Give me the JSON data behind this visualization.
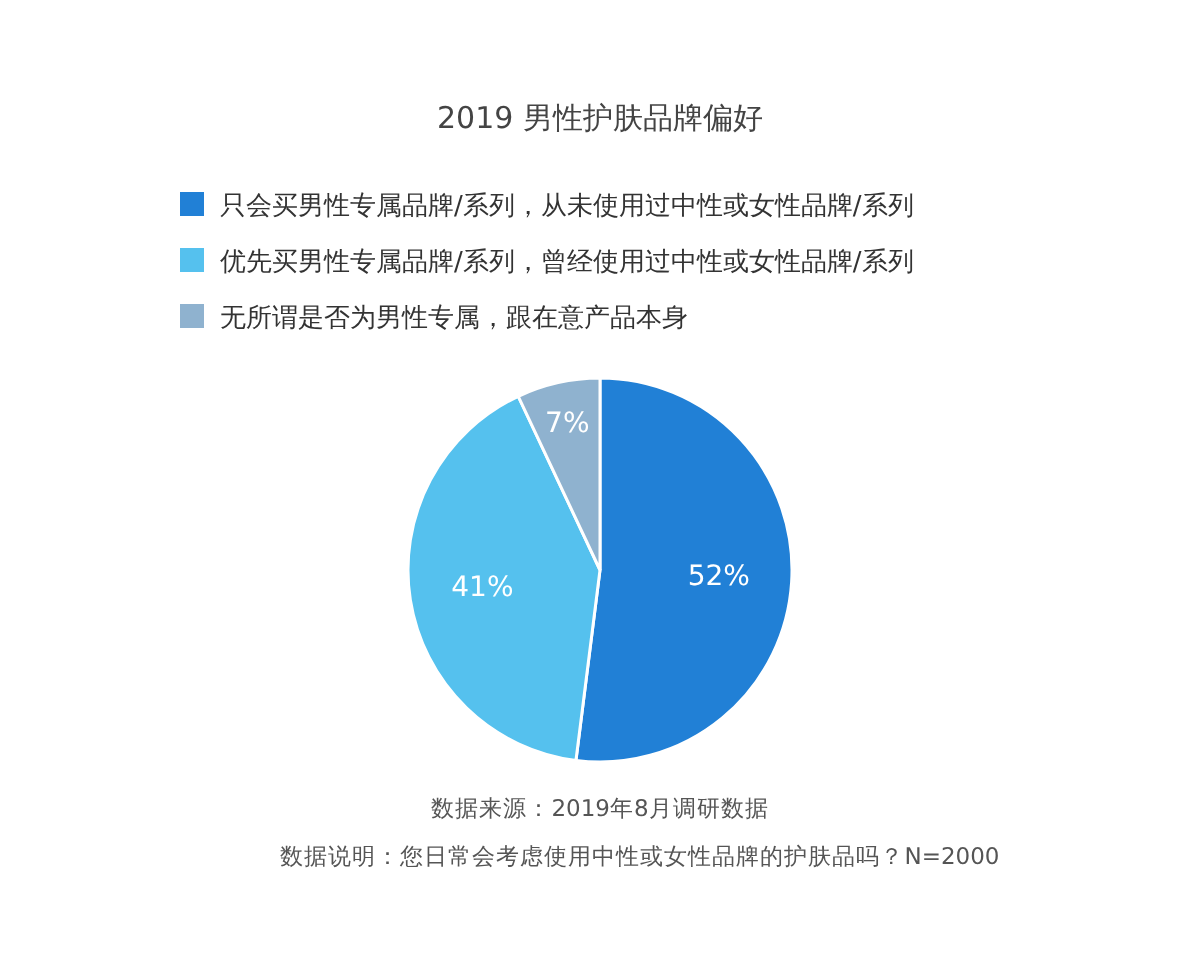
{
  "chart_data": {
    "type": "pie",
    "title": "2019 男性护肤品牌偏好",
    "categories": [
      "只会买男性专属品牌/系列，从未使用过中性或女性品牌/系列",
      "优先买男性专属品牌/系列，曾经使用过中性或女性品牌/系列",
      "无所谓是否为男性专属，跟在意产品本身"
    ],
    "values": [
      52,
      41,
      7
    ],
    "colors": [
      "#2180d6",
      "#55c1ee",
      "#8fb2cf"
    ],
    "value_labels": [
      "52%",
      "41%",
      "7%"
    ],
    "legend": "top left",
    "annotations": [
      "数据来源：2019年8月调研数据",
      "数据说明：您日常会考虑使用中性或女性品牌的护肤品吗？N=2000"
    ]
  }
}
